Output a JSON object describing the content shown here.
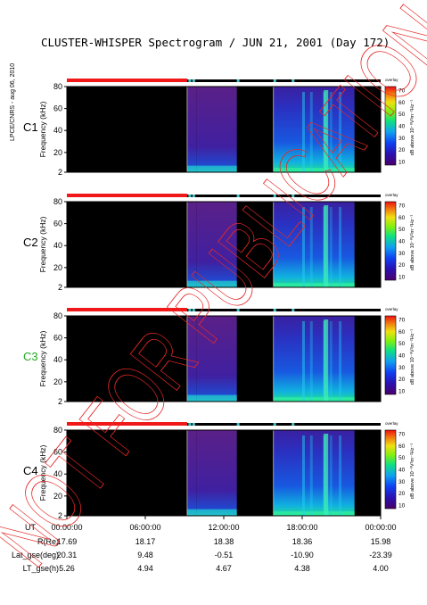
{
  "title": "CLUSTER-WHISPER Spectrogram / JUN 21, 2001 (Day 172)",
  "side_label": "LPCE/CNRS - aug 06, 2010",
  "watermark": "NOT FOR PUBLICATION",
  "colors": {
    "watermark": "#e62828",
    "status_red": "#f01818",
    "status_black": "#000000",
    "status_cyan": "#40c0c0",
    "panel_bg": "#000000"
  },
  "chart_data": {
    "type": "heatmap",
    "panels": [
      {
        "label": "C1",
        "label_color": "#000000"
      },
      {
        "label": "C2",
        "label_color": "#000000"
      },
      {
        "label": "C3",
        "label_color": "#22aa22"
      },
      {
        "label": "C4",
        "label_color": "#000000"
      }
    ],
    "ylabel": "Frequency (kHz)",
    "yticks": [
      "2",
      "20",
      "40",
      "60",
      "80"
    ],
    "ylim": [
      2,
      80
    ],
    "colorbar": {
      "label": "dB above 10⁻⁸V²m⁻²Hz⁻¹",
      "tag": "overlay",
      "ticks": [
        "10",
        "20",
        "30",
        "40",
        "50",
        "60",
        "70"
      ],
      "range": [
        10,
        70
      ],
      "colors": [
        "#4a006a",
        "#2a10b0",
        "#1040f0",
        "#10a0f0",
        "#10e080",
        "#80f010",
        "#f0e010",
        "#f08010",
        "#f01010"
      ]
    },
    "x_axis_label": "UT",
    "xticks": [
      "00:00:00",
      "06:00:00",
      "12:00:00",
      "18:00:00",
      "00:00:00"
    ],
    "xlim_hours": [
      0,
      24
    ],
    "data_intervals_hours": [
      {
        "start": 9.2,
        "end": 9.9,
        "note": "wideband burst, low-frequency emission"
      },
      {
        "start": 9.9,
        "end": 13.0,
        "note": "purple background ~10 dB"
      },
      {
        "start": 15.8,
        "end": 22.0,
        "note": "blue/green broadband emission"
      }
    ],
    "status_bar_red_hours": [
      0,
      9.2
    ],
    "orbit_table": {
      "rows": [
        {
          "label": "R(Re)",
          "values": [
            "17.69",
            "18.17",
            "18.38",
            "18.36",
            "15.98"
          ]
        },
        {
          "label": "Lat_gse(deg)",
          "values": [
            "20.31",
            "9.48",
            "-0.51",
            "-10.90",
            "-23.39"
          ]
        },
        {
          "label": "LT_gse(h)",
          "values": [
            "5.26",
            "4.94",
            "4.67",
            "4.38",
            "4.00"
          ]
        }
      ]
    }
  }
}
